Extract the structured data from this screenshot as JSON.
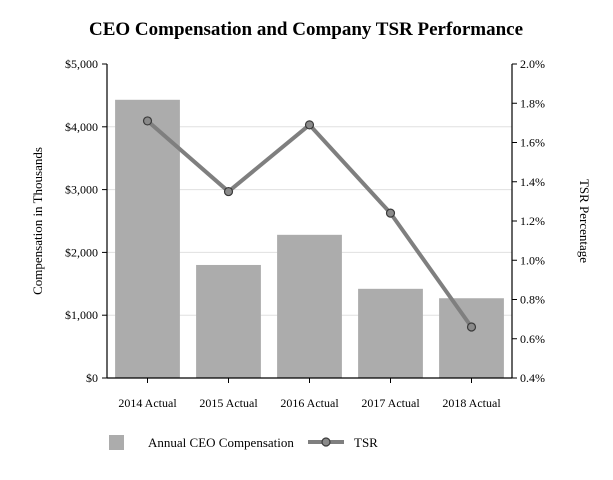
{
  "chart_data": {
    "type": "bar",
    "title": "CEO Compensation and Company TSR Performance",
    "categories": [
      "2014 Actual",
      "2015 Actual",
      "2016 Actual",
      "2017 Actual",
      "2018 Actual"
    ],
    "series": [
      {
        "name": "Annual CEO Compensation",
        "type": "bar",
        "axis": "left",
        "values": [
          4430,
          1800,
          2280,
          1420,
          1270
        ]
      },
      {
        "name": "TSR",
        "type": "line",
        "axis": "right",
        "values": [
          1.71,
          1.35,
          1.69,
          1.24,
          0.66
        ]
      }
    ],
    "ylabel": "Compensation in Thousands",
    "y2label": "TSR Percentage",
    "ylim": [
      0,
      5000
    ],
    "y2lim": [
      0.4,
      2.0
    ],
    "yticks": [
      "$0",
      "$1,000",
      "$2,000",
      "$3,000",
      "$4,000",
      "$5,000"
    ],
    "y2ticks": [
      "0.4%",
      "0.6%",
      "0.8%",
      "1.0%",
      "1.2%",
      "1.4%",
      "1.6%",
      "1.8%",
      "2.0%"
    ],
    "grid": true,
    "legend_position": "bottom",
    "colors": {
      "bar": "#acacac",
      "line": "#7f7f7f",
      "marker_fill": "#8a8a8a",
      "axis": "#000000",
      "grid": "#e0e0e0"
    }
  }
}
